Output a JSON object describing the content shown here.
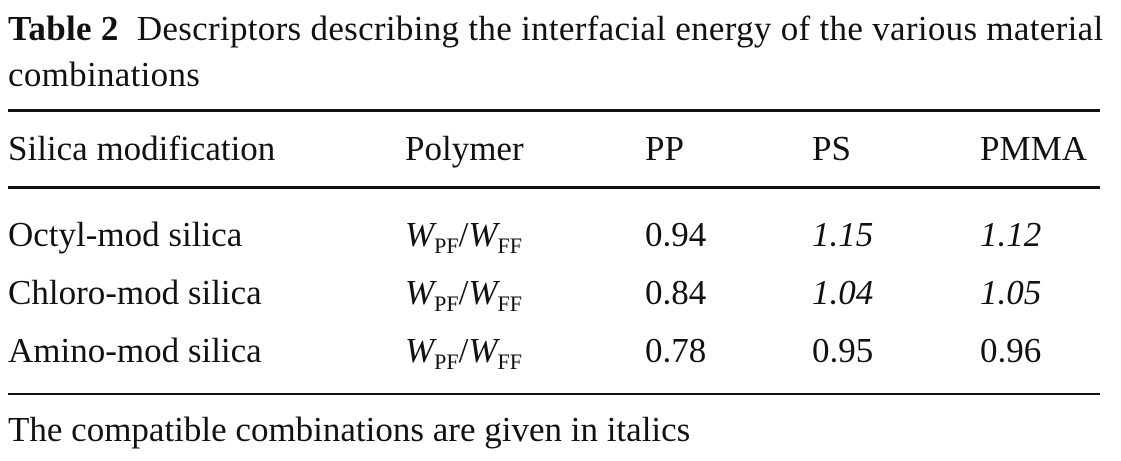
{
  "caption": {
    "label": "Table 2",
    "text": "Descriptors describing the interfacial energy of the various material combinations"
  },
  "table": {
    "headers": [
      "Silica modification",
      "Polymer",
      "PP",
      "PS",
      "PMMA"
    ],
    "rows": [
      {
        "modification": "Octyl-mod silica",
        "polymer": {
          "w1": "W",
          "sub1": "PF",
          "slash": "/",
          "w2": "W",
          "sub2": "FF"
        },
        "pp": "0.94",
        "ps": "1.15",
        "pmma": "1.12",
        "ps_italic": true,
        "pmma_italic": true
      },
      {
        "modification": "Chloro-mod silica",
        "polymer": {
          "w1": "W",
          "sub1": "PF",
          "slash": "/",
          "w2": "W",
          "sub2": "FF"
        },
        "pp": "0.84",
        "ps": "1.04",
        "pmma": "1.05",
        "ps_italic": true,
        "pmma_italic": true
      },
      {
        "modification": "Amino-mod silica",
        "polymer": {
          "w1": "W",
          "sub1": "PF",
          "slash": "/",
          "w2": "W",
          "sub2": "FF"
        },
        "pp": "0.78",
        "ps": "0.95",
        "pmma": "0.96",
        "ps_italic": false,
        "pmma_italic": false
      }
    ]
  },
  "footnote": "The compatible combinations are given in italics"
}
